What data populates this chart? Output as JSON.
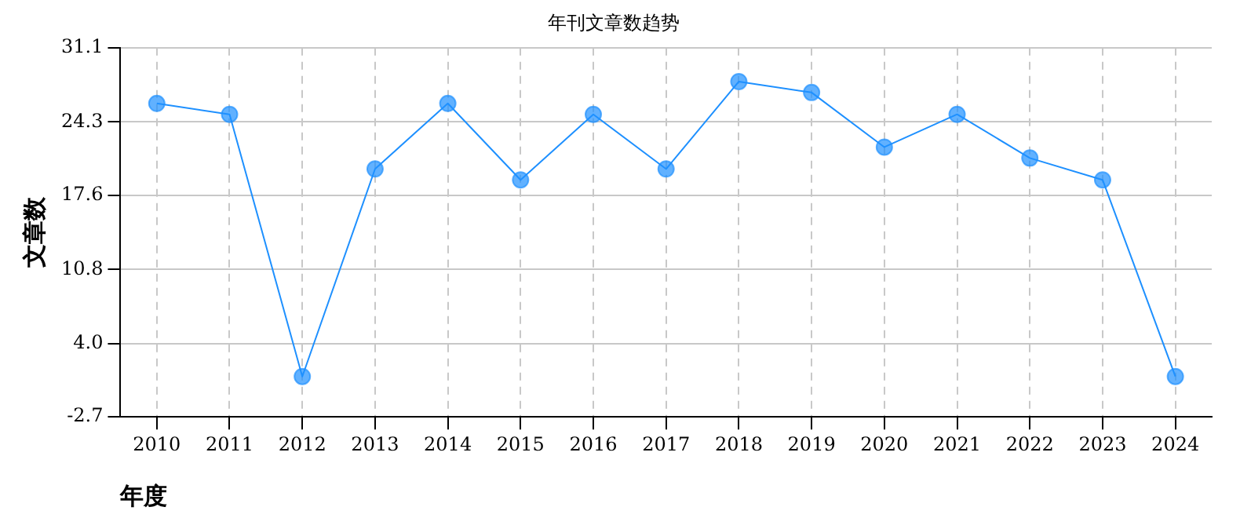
{
  "chart_data": {
    "type": "line",
    "title": "年刊文章数趋势",
    "xlabel": "年度",
    "ylabel": "文章数",
    "categories": [
      "2010",
      "2011",
      "2012",
      "2013",
      "2014",
      "2015",
      "2016",
      "2017",
      "2018",
      "2019",
      "2020",
      "2021",
      "2022",
      "2023",
      "2024"
    ],
    "series": [
      {
        "color": "#1e90ff",
        "values": [
          26,
          25,
          1,
          20,
          26,
          19,
          25,
          20,
          28,
          27,
          22,
          25,
          21,
          19,
          1
        ]
      }
    ],
    "ylim": [
      -2.7,
      31.1
    ],
    "yticks": [
      -2.7,
      {
        "value": 4,
        "label": "4.0"
      },
      10.8,
      17.6,
      24.3,
      31.1
    ],
    "grid": true,
    "legend": false,
    "marker": "circle",
    "line_style": "solid"
  }
}
